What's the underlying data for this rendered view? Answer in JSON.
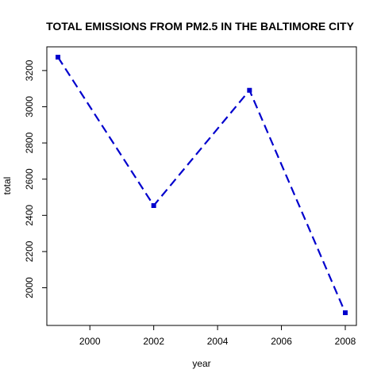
{
  "chart_data": {
    "type": "line",
    "title": "TOTAL EMISSIONS FROM PM2.5 IN THE BALTIMORE CITY",
    "xlabel": "year",
    "ylabel": "total",
    "x": [
      1999,
      2002,
      2005,
      2008
    ],
    "series": [
      {
        "values": [
          3274,
          2454,
          3091,
          1862
        ],
        "color": "#0000CD",
        "line_style": "dashed",
        "marker": "square"
      }
    ],
    "xlim": [
      1999,
      2008
    ],
    "ylim": [
      1862,
      3274
    ],
    "x_ticks": [
      2000,
      2002,
      2004,
      2006,
      2008
    ],
    "y_ticks": [
      2000,
      2200,
      2400,
      2600,
      2800,
      3000,
      3200
    ],
    "grid": false,
    "legend": "none"
  }
}
